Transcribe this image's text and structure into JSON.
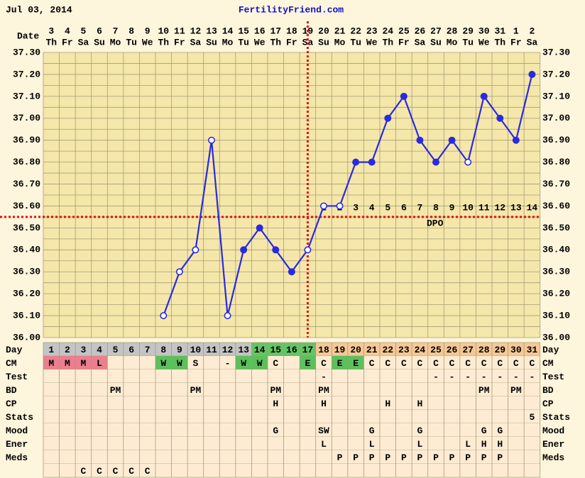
{
  "chart_data": {
    "type": "line",
    "date": "Jul 03, 2014",
    "site": "FertilityFriend.com",
    "date_label": "Date",
    "categories": [
      "3",
      "4",
      "5",
      "6",
      "7",
      "8",
      "9",
      "10",
      "11",
      "12",
      "13",
      "14",
      "15",
      "16",
      "17",
      "18",
      "19",
      "20",
      "21",
      "22",
      "23",
      "24",
      "25",
      "26",
      "27",
      "28",
      "29",
      "30",
      "31",
      "1",
      "2"
    ],
    "weekdays": [
      "Th",
      "Fr",
      "Sa",
      "Su",
      "Mo",
      "Tu",
      "We",
      "Th",
      "Fr",
      "Sa",
      "Su",
      "Mo",
      "Tu",
      "We",
      "Th",
      "Fr",
      "Sa",
      "Su",
      "Mo",
      "Tu",
      "We",
      "Th",
      "Fr",
      "Sa",
      "Su",
      "Mo",
      "Tu",
      "We",
      "Th",
      "Fr",
      "Sa"
    ],
    "series": [
      {
        "name": "Temperature",
        "color": "#2a2ae0",
        "values": [
          null,
          null,
          null,
          null,
          null,
          null,
          null,
          36.1,
          36.3,
          36.4,
          36.9,
          36.1,
          36.4,
          36.5,
          36.4,
          36.3,
          36.4,
          36.6,
          36.6,
          36.8,
          36.8,
          37.0,
          37.1,
          36.9,
          36.8,
          36.9,
          36.8,
          37.1,
          37.0,
          36.9,
          37.2
        ],
        "point_style": [
          null,
          null,
          null,
          null,
          null,
          null,
          null,
          "open",
          "open",
          "open",
          "open",
          "open",
          "filled",
          "filled",
          "filled",
          "filled",
          "open",
          "open",
          "open",
          "filled",
          "filled",
          "filled",
          "filled",
          "filled",
          "filled",
          "filled",
          "open",
          "filled",
          "filled",
          "filled",
          "filled"
        ]
      }
    ],
    "ylim": [
      36.0,
      37.3
    ],
    "yticks": [
      {
        "value": 36.0,
        "label": "36.00"
      },
      {
        "value": 36.1,
        "label": "36.10"
      },
      {
        "value": 36.2,
        "label": "36.20"
      },
      {
        "value": 36.3,
        "label": "36.30"
      },
      {
        "value": 36.4,
        "label": "36.40"
      },
      {
        "value": 36.5,
        "label": "36.50"
      },
      {
        "value": 36.6,
        "label": "36.60"
      },
      {
        "value": 36.7,
        "label": "36.70"
      },
      {
        "value": 36.8,
        "label": "36.80"
      },
      {
        "value": 36.9,
        "label": "36.90"
      },
      {
        "value": 37.0,
        "label": "37.00"
      },
      {
        "value": 37.1,
        "label": "37.10"
      },
      {
        "value": 37.2,
        "label": "37.20"
      },
      {
        "value": 37.3,
        "label": "37.30"
      }
    ],
    "grid": true,
    "coverline": 36.55,
    "coverline_color": "#e01010",
    "ovulation": "19",
    "dpo": [
      null,
      null,
      null,
      null,
      null,
      null,
      null,
      null,
      null,
      null,
      null,
      null,
      null,
      null,
      null,
      null,
      null,
      1,
      2,
      3,
      4,
      5,
      6,
      7,
      8,
      9,
      10,
      11,
      12,
      13,
      14
    ],
    "dpo_label": "DPO",
    "rows": [
      {
        "label": "Day",
        "cells": [
          1,
          2,
          3,
          4,
          5,
          6,
          7,
          8,
          9,
          10,
          11,
          12,
          13,
          14,
          15,
          16,
          17,
          18,
          19,
          20,
          21,
          22,
          23,
          24,
          25,
          26,
          27,
          28,
          29,
          30,
          31
        ],
        "colors": [
          "#c4c4c4",
          "#c4c4c4",
          "#c4c4c4",
          "#c4c4c4",
          "#c4c4c4",
          "#c4c4c4",
          "#c4c4c4",
          "#c4c4c4",
          "#c4c4c4",
          "#c4c4c4",
          "#c4c4c4",
          "#c4c4c4",
          "#c4c4c4",
          "#66c466",
          "#66c466",
          "#66c466",
          "#66c466",
          "#f6c896",
          "#f6c896",
          "#f6c896",
          "#f6c896",
          "#f6c896",
          "#f6c896",
          "#f6c896",
          "#f6c896",
          "#f6c896",
          "#f6c896",
          "#f6c896",
          "#f6c896",
          "#f6c896",
          "#f6c896"
        ]
      },
      {
        "label": "CM",
        "cells": [
          "M",
          "M",
          "M",
          "L",
          null,
          null,
          null,
          "W",
          "W",
          "S",
          null,
          "-",
          "W",
          "W",
          "C",
          null,
          "E",
          "C",
          "E",
          "E",
          "C",
          "C",
          "C",
          "C",
          "C",
          "C",
          "C",
          "C",
          "C",
          "C",
          "C"
        ],
        "colors": [
          "#ea7f8e",
          "#ea7f8e",
          "#ea7f8e",
          "#ea7f8e",
          null,
          null,
          null,
          "#5cc05c",
          "#5cc05c",
          null,
          null,
          null,
          "#5cc05c",
          "#5cc05c",
          null,
          null,
          "#5cc05c",
          null,
          "#5cc05c",
          "#5cc05c",
          null,
          null,
          null,
          null,
          null,
          null,
          null,
          null,
          null,
          null,
          null
        ]
      },
      {
        "label": "Test",
        "cells": [
          null,
          null,
          null,
          null,
          null,
          null,
          null,
          null,
          null,
          null,
          null,
          null,
          null,
          null,
          null,
          null,
          null,
          "-",
          null,
          null,
          null,
          null,
          null,
          null,
          "-",
          "-",
          "-",
          "-",
          "-",
          "-",
          "-"
        ]
      },
      {
        "label": "BD",
        "cells": [
          null,
          null,
          null,
          null,
          "PM",
          null,
          null,
          null,
          null,
          "PM",
          null,
          null,
          null,
          null,
          "PM",
          null,
          null,
          "PM",
          null,
          null,
          null,
          null,
          null,
          null,
          null,
          null,
          null,
          "PM",
          null,
          "PM",
          null
        ]
      },
      {
        "label": "CP",
        "cells": [
          null,
          null,
          null,
          null,
          null,
          null,
          null,
          null,
          null,
          null,
          null,
          null,
          null,
          null,
          "H",
          null,
          null,
          "H",
          null,
          null,
          null,
          "H",
          null,
          "H",
          null,
          null,
          null,
          null,
          null,
          null,
          null
        ]
      },
      {
        "label": "Stats",
        "cells": [
          null,
          null,
          null,
          null,
          null,
          null,
          null,
          null,
          null,
          null,
          null,
          null,
          null,
          null,
          null,
          null,
          null,
          null,
          null,
          null,
          null,
          null,
          null,
          null,
          null,
          null,
          null,
          null,
          null,
          null,
          "5"
        ]
      },
      {
        "label": "Mood",
        "cells": [
          null,
          null,
          null,
          null,
          null,
          null,
          null,
          null,
          null,
          null,
          null,
          null,
          null,
          null,
          "G",
          null,
          null,
          "SW",
          null,
          null,
          "G",
          null,
          null,
          "G",
          null,
          null,
          null,
          "G",
          "G",
          null,
          null
        ]
      },
      {
        "label": "Ener",
        "cells": [
          null,
          null,
          null,
          null,
          null,
          null,
          null,
          null,
          null,
          null,
          null,
          null,
          null,
          null,
          null,
          null,
          null,
          "L",
          null,
          null,
          "L",
          null,
          null,
          "L",
          null,
          null,
          "L",
          "H",
          "H",
          null,
          null
        ]
      },
      {
        "label": "Meds",
        "cells": [
          null,
          null,
          null,
          null,
          null,
          null,
          null,
          null,
          null,
          null,
          null,
          null,
          null,
          null,
          null,
          null,
          null,
          null,
          "P",
          "P",
          "P",
          "P",
          "P",
          "P",
          "P",
          "P",
          "P",
          "P",
          "P",
          null,
          null
        ]
      },
      {
        "label": null,
        "cells": [
          null,
          null,
          "C",
          "C",
          "C",
          "C",
          "C",
          null,
          null,
          null,
          null,
          null,
          null,
          null,
          null,
          null,
          null,
          null,
          null,
          null,
          null,
          null,
          null,
          null,
          null,
          null,
          null,
          null,
          null,
          null,
          null
        ]
      }
    ]
  }
}
